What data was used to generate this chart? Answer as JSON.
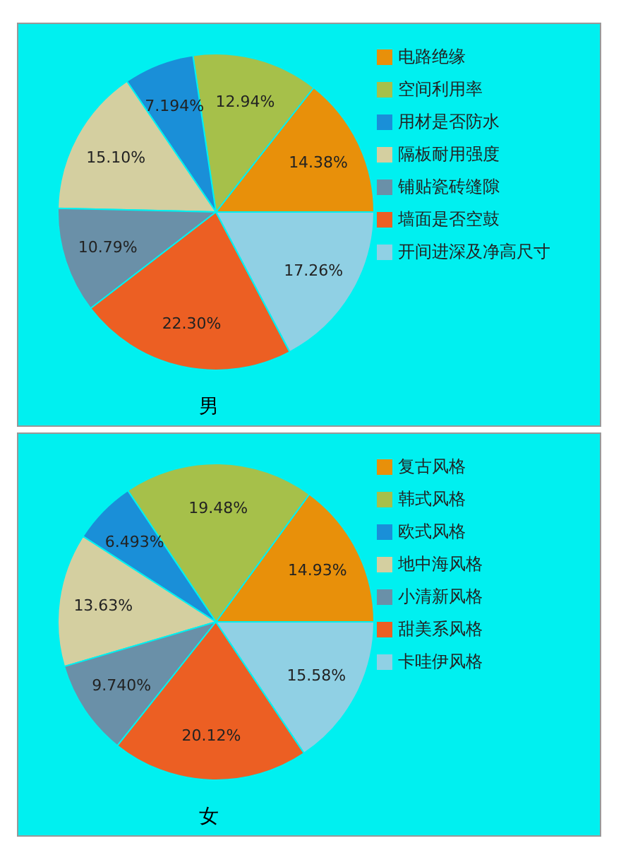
{
  "chart_data": [
    {
      "type": "pie",
      "title": "男",
      "categories": [
        "电路绝缘",
        "空间利用率",
        "用材是否防水",
        "隔板耐用强度",
        "铺贴瓷砖缝隙",
        "墙面是否空鼓",
        "开间进深及净高尺寸"
      ],
      "values": [
        14.38,
        12.94,
        7.194,
        15.1,
        10.79,
        22.3,
        17.26
      ],
      "value_labels": [
        "14.38%",
        "12.94%",
        "7.194%",
        "15.10%",
        "10.79%",
        "22.30%",
        "17.26%"
      ],
      "colors": [
        "#e8900a",
        "#a6c04a",
        "#1a8fd8",
        "#d4cfa0",
        "#6a90a8",
        "#ec5f23",
        "#90d0e4"
      ],
      "legend": "right"
    },
    {
      "type": "pie",
      "title": "女",
      "categories": [
        "复古风格",
        "韩式风格",
        "欧式风格",
        "地中海风格",
        "小清新风格",
        "甜美系风格",
        "卡哇伊风格"
      ],
      "values": [
        14.93,
        19.48,
        6.493,
        13.63,
        9.74,
        20.12,
        15.58
      ],
      "value_labels": [
        "14.93%",
        "19.48%",
        "6.493%",
        "13.63%",
        "9.740%",
        "20.12%",
        "15.58%"
      ],
      "colors": [
        "#e8900a",
        "#a6c04a",
        "#1a8fd8",
        "#d4cfa0",
        "#6a90a8",
        "#ec5f23",
        "#90d0e4"
      ],
      "legend": "right"
    }
  ]
}
